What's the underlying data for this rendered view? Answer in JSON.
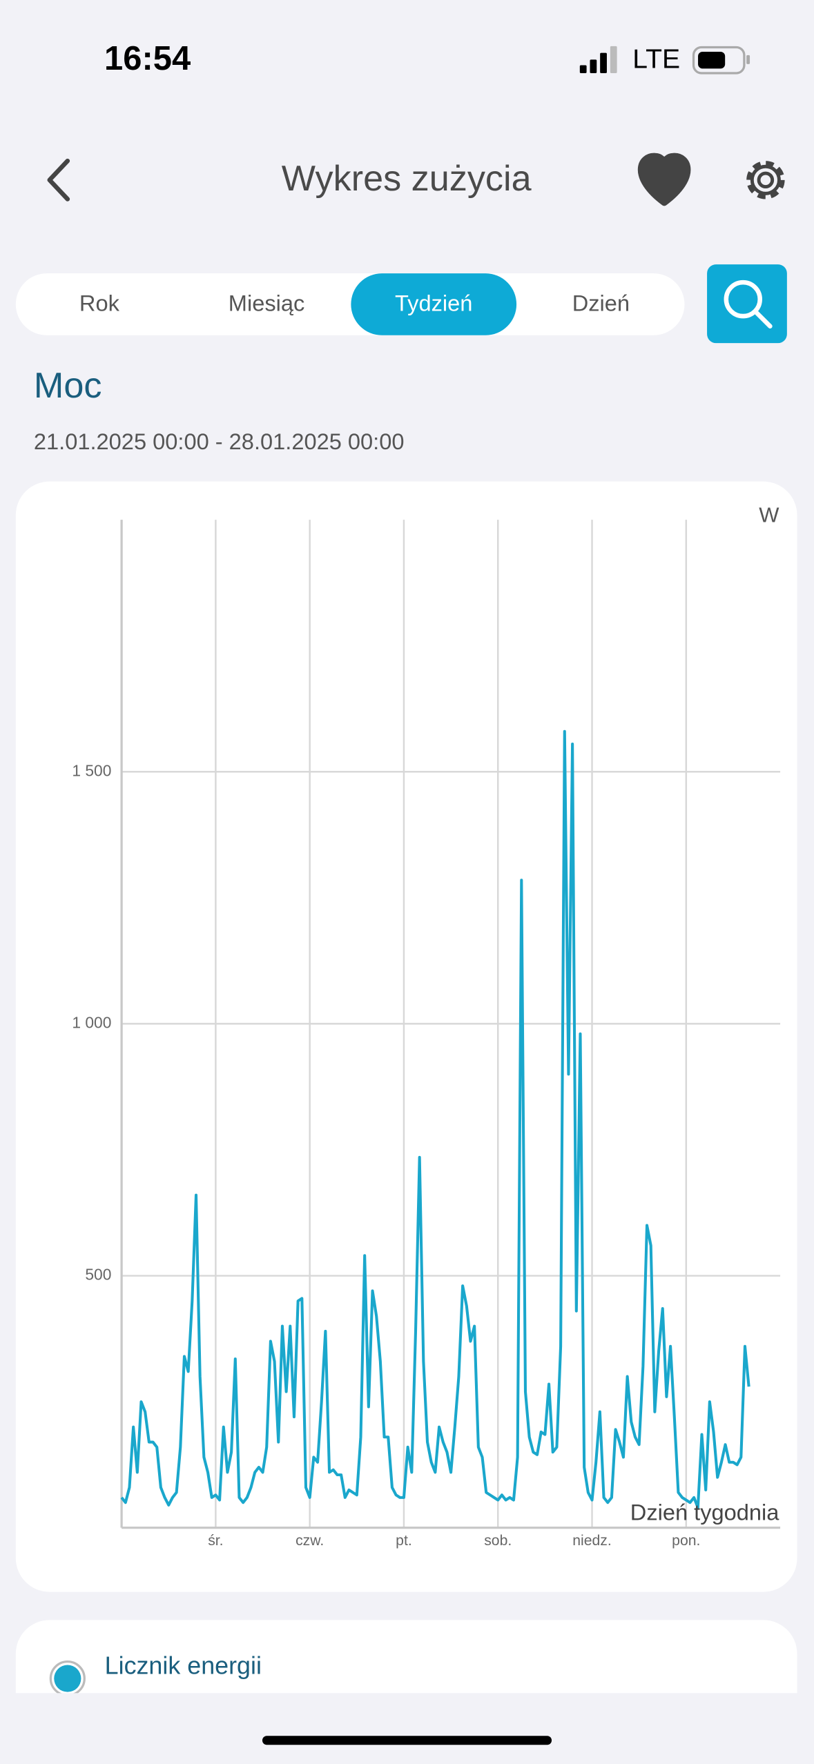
{
  "status_bar": {
    "time": "16:54",
    "network": "LTE"
  },
  "header": {
    "title": "Wykres zużycia"
  },
  "tabs": [
    {
      "label": "Rok",
      "selected": false
    },
    {
      "label": "Miesiąc",
      "selected": false
    },
    {
      "label": "Tydzień",
      "selected": true
    },
    {
      "label": "Dzień",
      "selected": false
    }
  ],
  "chart_data": {
    "type": "line",
    "title": "Moc",
    "subtitle": "21.01.2025 00:00 - 28.01.2025 00:00",
    "y_unit": "W",
    "x_label": "Dzień tygodnia",
    "xlim": [
      0,
      168
    ],
    "xticks": [
      {
        "value": 24,
        "label": "śr."
      },
      {
        "value": 48,
        "label": "czw."
      },
      {
        "value": 72,
        "label": "pt."
      },
      {
        "value": 96,
        "label": "sob."
      },
      {
        "value": 120,
        "label": "niedz."
      },
      {
        "value": 144,
        "label": "pon."
      }
    ],
    "ylim": [
      0,
      2000
    ],
    "yticks": [
      500,
      {
        "value": 1000,
        "label": "1 000"
      },
      {
        "value": 1500,
        "label": "1 500"
      }
    ],
    "grid": true,
    "series": [
      {
        "name": "Licznik energii",
        "color": "#1aa7cc",
        "x": [
          0,
          1,
          2,
          3,
          4,
          5,
          6,
          7,
          8,
          9,
          10,
          11,
          12,
          13,
          14,
          15,
          16,
          17,
          18,
          19,
          20,
          21,
          22,
          23,
          24,
          25,
          26,
          27,
          28,
          29,
          30,
          31,
          32,
          33,
          34,
          35,
          36,
          37,
          38,
          39,
          40,
          41,
          42,
          43,
          44,
          45,
          46,
          47,
          48,
          49,
          50,
          51,
          52,
          53,
          54,
          55,
          56,
          57,
          58,
          59,
          60,
          61,
          62,
          63,
          64,
          65,
          66,
          67,
          68,
          69,
          70,
          71,
          72,
          73,
          74,
          75,
          76,
          77,
          78,
          79,
          80,
          81,
          82,
          83,
          84,
          85,
          86,
          87,
          88,
          89,
          90,
          91,
          92,
          93,
          94,
          95,
          96,
          97,
          98,
          99,
          100,
          101,
          102,
          103,
          104,
          105,
          106,
          107,
          108,
          109,
          110,
          111,
          112,
          113,
          114,
          115,
          116,
          117,
          118,
          119,
          120,
          121,
          122,
          123,
          124,
          125,
          126,
          127,
          128,
          129,
          130,
          131,
          132,
          133,
          134,
          135,
          136,
          137,
          138,
          139,
          140,
          141,
          142,
          143,
          144,
          145,
          146,
          147,
          148,
          149,
          150,
          151,
          152,
          153,
          154,
          155,
          156,
          157,
          158,
          159,
          160
        ],
        "values": [
          60,
          50,
          80,
          200,
          110,
          250,
          230,
          170,
          170,
          160,
          80,
          60,
          45,
          60,
          70,
          160,
          340,
          310,
          450,
          660,
          300,
          140,
          110,
          60,
          65,
          55,
          200,
          110,
          150,
          335,
          60,
          50,
          60,
          80,
          110,
          120,
          110,
          160,
          370,
          330,
          170,
          400,
          270,
          400,
          220,
          450,
          455,
          80,
          60,
          140,
          130,
          250,
          390,
          110,
          115,
          105,
          105,
          60,
          75,
          70,
          65,
          180,
          540,
          240,
          470,
          420,
          330,
          180,
          180,
          80,
          65,
          60,
          60,
          160,
          110,
          390,
          735,
          330,
          170,
          130,
          110,
          200,
          170,
          150,
          110,
          200,
          300,
          480,
          440,
          370,
          400,
          160,
          140,
          70,
          65,
          60,
          55,
          65,
          55,
          60,
          55,
          140,
          1285,
          270,
          180,
          150,
          145,
          190,
          185,
          285,
          150,
          160,
          360,
          1580,
          900,
          1555,
          430,
          980,
          120,
          70,
          55,
          130,
          230,
          60,
          50,
          60,
          195,
          170,
          140,
          300,
          210,
          180,
          165,
          320,
          600,
          560,
          230,
          350,
          435,
          260,
          360,
          220,
          70,
          60,
          55,
          50,
          60,
          40,
          185,
          75,
          250,
          190,
          100,
          130,
          165,
          130,
          130,
          125,
          140,
          360,
          280
        ]
      }
    ]
  }
}
